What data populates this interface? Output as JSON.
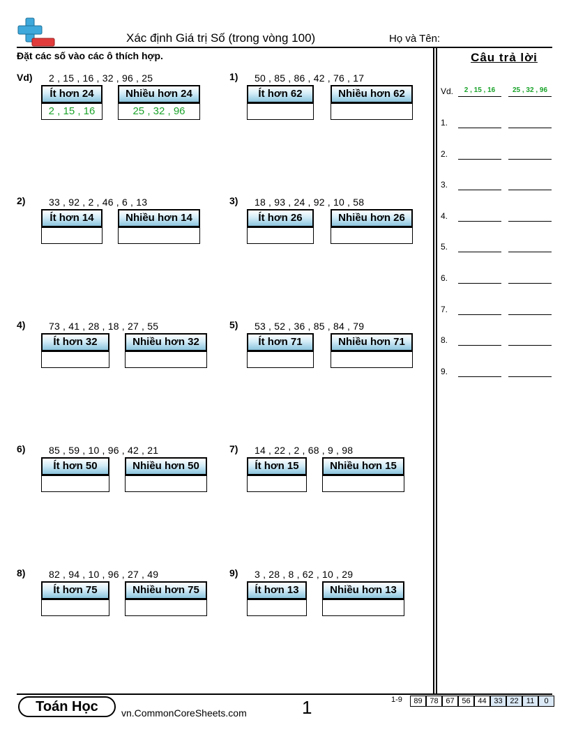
{
  "header": {
    "title": "Xác định Giá trị Số (trong vòng 100)",
    "name_label": "Họ và Tên:",
    "instructions": "Đặt các số vào các ô thích hợp."
  },
  "problems": [
    {
      "label": "Vd)",
      "numbers": "2 , 15 , 16 , 32 , 96 , 25",
      "less": "Ít hơn 24",
      "more": "Nhiều hơn 24",
      "less_answer": "2 , 15 , 16",
      "more_answer": "25 , 32 , 96"
    },
    {
      "label": "1)",
      "numbers": "50 , 85 , 86 , 42 , 76 , 17",
      "less": "Ít hơn 62",
      "more": "Nhiều hơn 62",
      "less_answer": "",
      "more_answer": ""
    },
    {
      "label": "2)",
      "numbers": "33 , 92 , 2 , 46 , 6 , 13",
      "less": "Ít hơn 14",
      "more": "Nhiều hơn 14",
      "less_answer": "",
      "more_answer": ""
    },
    {
      "label": "3)",
      "numbers": "18 , 93 , 24 , 92 , 10 , 58",
      "less": "Ít hơn 26",
      "more": "Nhiều hơn 26",
      "less_answer": "",
      "more_answer": ""
    },
    {
      "label": "4)",
      "numbers": "73 , 41 , 28 , 18 , 27 , 55",
      "less": "Ít hơn 32",
      "more": "Nhiều hơn 32",
      "less_answer": "",
      "more_answer": ""
    },
    {
      "label": "5)",
      "numbers": "53 , 52 , 36 , 85 , 84 , 79",
      "less": "Ít hơn 71",
      "more": "Nhiều hơn 71",
      "less_answer": "",
      "more_answer": ""
    },
    {
      "label": "6)",
      "numbers": "85 , 59 , 10 , 96 , 42 , 21",
      "less": "Ít hơn 50",
      "more": "Nhiều hơn 50",
      "less_answer": "",
      "more_answer": ""
    },
    {
      "label": "7)",
      "numbers": "14 , 22 , 2 , 68 , 9 , 98",
      "less": "Ít hơn 15",
      "more": "Nhiều hơn 15",
      "less_answer": "",
      "more_answer": ""
    },
    {
      "label": "8)",
      "numbers": "82 , 94 , 10 , 96 , 27 , 49",
      "less": "Ít hơn 75",
      "more": "Nhiều hơn 75",
      "less_answer": "",
      "more_answer": ""
    },
    {
      "label": "9)",
      "numbers": "3 , 28 , 8 , 62 , 10 , 29",
      "less": "Ít hơn 13",
      "more": "Nhiều hơn 13",
      "less_answer": "",
      "more_answer": ""
    }
  ],
  "answer_key": {
    "title": "Câu trả lời",
    "rows": [
      {
        "label": "Vd.",
        "a": "2 , 15 , 16",
        "b": "25 , 32 , 96"
      },
      {
        "label": "1.",
        "a": "",
        "b": ""
      },
      {
        "label": "2.",
        "a": "",
        "b": ""
      },
      {
        "label": "3.",
        "a": "",
        "b": ""
      },
      {
        "label": "4.",
        "a": "",
        "b": ""
      },
      {
        "label": "5.",
        "a": "",
        "b": ""
      },
      {
        "label": "6.",
        "a": "",
        "b": ""
      },
      {
        "label": "7.",
        "a": "",
        "b": ""
      },
      {
        "label": "8.",
        "a": "",
        "b": ""
      },
      {
        "label": "9.",
        "a": "",
        "b": ""
      }
    ]
  },
  "footer": {
    "brand": "Toán Học",
    "site": "vn.CommonCoreSheets.com",
    "page": "1",
    "range": "1-9",
    "scores": [
      "89",
      "78",
      "67",
      "56",
      "44",
      "33",
      "22",
      "11",
      "0"
    ]
  },
  "colors": {
    "answer_green": "#1aa32a",
    "header_gradient_bottom": "#8cc5de",
    "logo_blue": "#3fa9dc",
    "logo_red": "#e23b3b",
    "score_highlight": "#dbe9f6"
  },
  "icons": {
    "logo": "plus-minus-logo-icon"
  }
}
